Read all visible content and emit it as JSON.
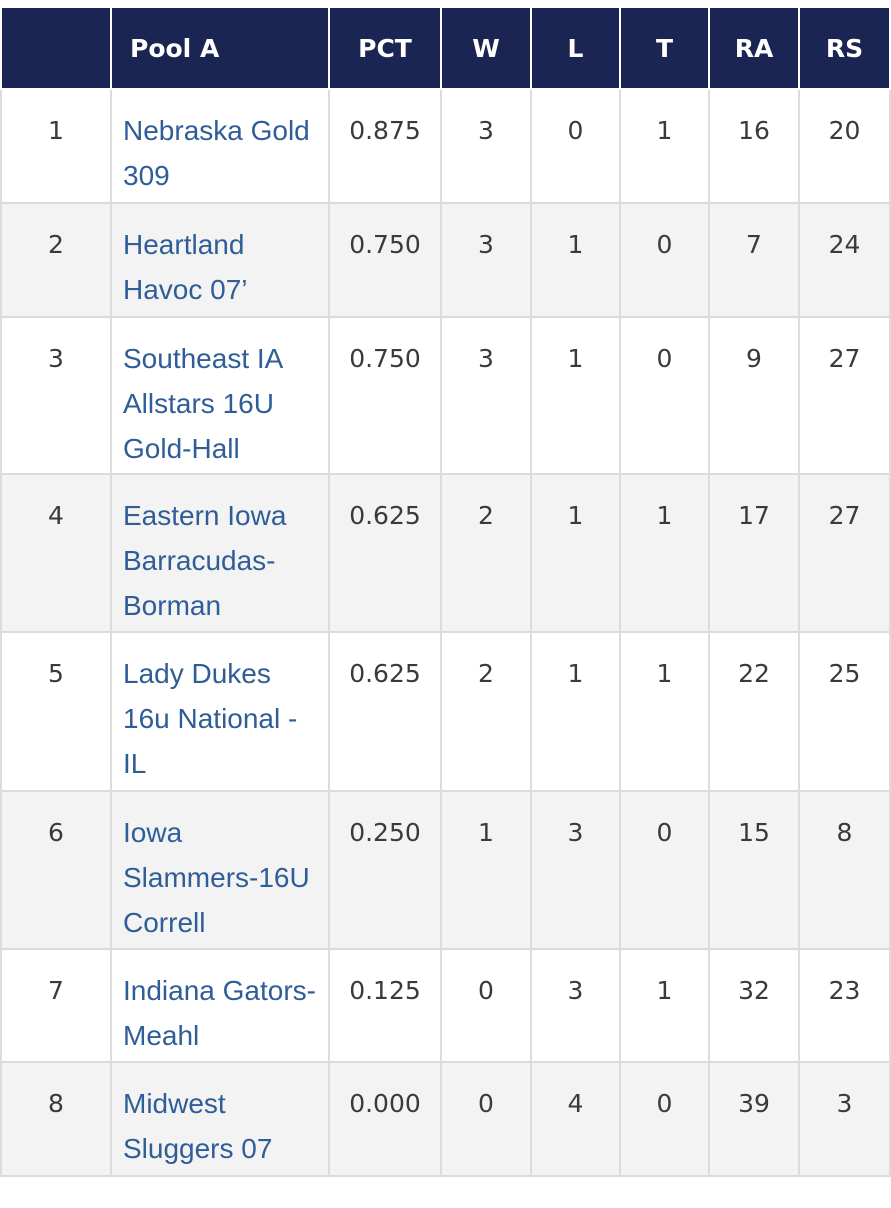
{
  "table": {
    "header": [
      "Pool A",
      "PCT",
      "W",
      "L",
      "T",
      "RA",
      "RS"
    ],
    "rows": [
      [
        1,
        "Nebraska Gold 309",
        "0.875",
        3,
        0,
        1,
        16,
        20
      ],
      [
        2,
        "Heartland Havoc 07’",
        "0.750",
        3,
        1,
        0,
        7,
        24
      ],
      [
        3,
        "Southeast IA Allstars 16U Gold-Hall",
        "0.750",
        3,
        1,
        0,
        9,
        27
      ],
      [
        4,
        "Eastern Iowa Barracudas-Borman",
        "0.625",
        2,
        1,
        1,
        17,
        27
      ],
      [
        5,
        "Lady Dukes 16u National - IL",
        "0.625",
        2,
        1,
        1,
        22,
        25
      ],
      [
        6,
        "Iowa Slammers-16U Correll",
        "0.250",
        1,
        3,
        0,
        15,
        8
      ],
      [
        7,
        "Indiana Gators-Meahl",
        "0.125",
        0,
        3,
        1,
        32,
        23
      ],
      [
        8,
        "Midwest Sluggers 07",
        "0.000",
        0,
        4,
        0,
        39,
        3
      ]
    ]
  }
}
